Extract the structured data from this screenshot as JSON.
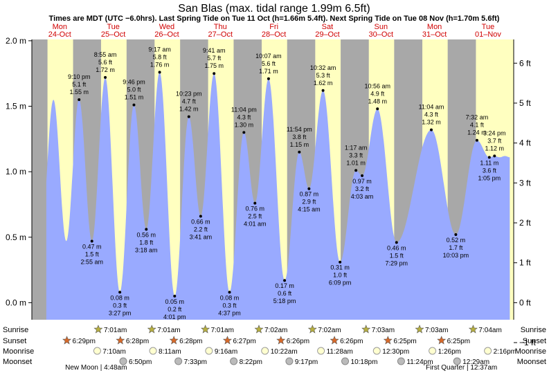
{
  "title": "San Blas (max. tidal range 1.99m 6.5ft)",
  "subtitle": "Times are MDT (UTC −6.0hrs). Last Spring Tide on Tue 11 Oct (h=1.66m 5.4ft). Next Spring Tide on Tue 08 Nov (h=1.70m 5.6ft)",
  "colors": {
    "day": "#ffffc0",
    "night": "#a8a8a8",
    "tide": "#99aaff",
    "day_label": "#d00000",
    "sun": "#b8b040",
    "sunset": "#d86a2a"
  },
  "chart_data": {
    "type": "area",
    "x_start": "2022-10-24 00:00",
    "x_end": "2022-11-01 24:00",
    "data_start": "2022-10-24 06:29",
    "data_end": "2022-11-01 22:15",
    "ylim": [
      -0.13,
      2.01
    ],
    "y_ticks_m": [
      "2.0 m",
      "1.5 m",
      "1.0 m",
      "0.5 m",
      "0.0 m"
    ],
    "y_ticks_ft": [
      "6 ft",
      "5 ft",
      "4 ft",
      "3 ft",
      "2 ft",
      "1 ft",
      "0 ft",
      "−1 ft"
    ],
    "days": [
      {
        "dow": "Mon",
        "date": "24-Oct",
        "sunrise": "7:01",
        "sunset": "18:29"
      },
      {
        "dow": "Tue",
        "date": "25–Oct",
        "sunrise": "7:01",
        "sunset": "18:28"
      },
      {
        "dow": "Wed",
        "date": "26–Oct",
        "sunrise": "7:01",
        "sunset": "18:28"
      },
      {
        "dow": "Thu",
        "date": "27–Oct",
        "sunrise": "7:01",
        "sunset": "18:27"
      },
      {
        "dow": "Fri",
        "date": "28–Oct",
        "sunrise": "7:02",
        "sunset": "18:26"
      },
      {
        "dow": "Sat",
        "date": "29–Oct",
        "sunrise": "7:02",
        "sunset": "18:26"
      },
      {
        "dow": "Sun",
        "date": "30–Oct",
        "sunrise": "7:03",
        "sunset": "18:25"
      },
      {
        "dow": "Mon",
        "date": "31–Oct",
        "sunrise": "7:03",
        "sunset": "18:25"
      },
      {
        "dow": "Tue",
        "date": "01–Nov",
        "sunrise": "7:04",
        "sunset": ""
      }
    ],
    "tides": [
      {
        "day": 0,
        "time": "21:10",
        "m": 1.55,
        "lines": [
          "9:10 pm",
          "5.1 ft",
          "1.55 m"
        ]
      },
      {
        "day": 1,
        "time": "02:55",
        "m": 0.47,
        "lines": [
          "0.47 m",
          "1.5 ft",
          "2:55 am"
        ]
      },
      {
        "day": 1,
        "time": "08:55",
        "m": 1.72,
        "lines": [
          "8:55 am",
          "5.6 ft",
          "1.72 m"
        ]
      },
      {
        "day": 1,
        "time": "15:27",
        "m": 0.08,
        "lines": [
          "0.08 m",
          "0.3 ft",
          "3:27 pm"
        ]
      },
      {
        "day": 1,
        "time": "21:46",
        "m": 1.51,
        "lines": [
          "9:46 pm",
          "5.0 ft",
          "1.51 m"
        ]
      },
      {
        "day": 2,
        "time": "03:18",
        "m": 0.56,
        "lines": [
          "0.56 m",
          "1.8 ft",
          "3:18 am"
        ]
      },
      {
        "day": 2,
        "time": "09:17",
        "m": 1.76,
        "lines": [
          "9:17 am",
          "5.8 ft",
          "1.76 m"
        ]
      },
      {
        "day": 2,
        "time": "16:01",
        "m": 0.05,
        "lines": [
          "0.05 m",
          "0.2 ft",
          "4:01 pm"
        ]
      },
      {
        "day": 2,
        "time": "22:23",
        "m": 1.42,
        "lines": [
          "10:23 pm",
          "4.7 ft",
          "1.42 m"
        ]
      },
      {
        "day": 3,
        "time": "03:41",
        "m": 0.66,
        "lines": [
          "0.66 m",
          "2.2 ft",
          "3:41 am"
        ]
      },
      {
        "day": 3,
        "time": "09:41",
        "m": 1.75,
        "lines": [
          "9:41 am",
          "5.7 ft",
          "1.75 m"
        ]
      },
      {
        "day": 3,
        "time": "16:37",
        "m": 0.08,
        "lines": [
          "0.08 m",
          "0.3 ft",
          "4:37 pm"
        ]
      },
      {
        "day": 3,
        "time": "23:04",
        "m": 1.3,
        "lines": [
          "11:04 pm",
          "4.3 ft",
          "1.30 m"
        ]
      },
      {
        "day": 4,
        "time": "04:01",
        "m": 0.76,
        "lines": [
          "0.76 m",
          "2.5 ft",
          "4:01 am"
        ]
      },
      {
        "day": 4,
        "time": "10:07",
        "m": 1.71,
        "lines": [
          "10:07 am",
          "5.6 ft",
          "1.71 m"
        ]
      },
      {
        "day": 4,
        "time": "17:18",
        "m": 0.17,
        "lines": [
          "0.17 m",
          "0.6 ft",
          "5:18 pm"
        ]
      },
      {
        "day": 4,
        "time": "23:54",
        "m": 1.15,
        "lines": [
          "11:54 pm",
          "3.8 ft",
          "1.15 m"
        ]
      },
      {
        "day": 5,
        "time": "04:15",
        "m": 0.87,
        "lines": [
          "0.87 m",
          "2.9 ft",
          "4:15 am"
        ]
      },
      {
        "day": 5,
        "time": "10:32",
        "m": 1.62,
        "lines": [
          "10:32 am",
          "5.3 ft",
          "1.62 m"
        ]
      },
      {
        "day": 5,
        "time": "18:09",
        "m": 0.31,
        "lines": [
          "0.31 m",
          "1.0 ft",
          "6:09 pm"
        ]
      },
      {
        "day": 6,
        "time": "01:17",
        "m": 1.01,
        "lines": [
          "1:17 am",
          "3.3 ft",
          "1.01 m"
        ]
      },
      {
        "day": 6,
        "time": "04:03",
        "m": 0.97,
        "lines": [
          "0.97 m",
          "3.2 ft",
          "4:03 am"
        ]
      },
      {
        "day": 6,
        "time": "10:56",
        "m": 1.48,
        "lines": [
          "10:56 am",
          "4.9 ft",
          "1.48 m"
        ]
      },
      {
        "day": 6,
        "time": "19:29",
        "m": 0.46,
        "lines": [
          "0.46 m",
          "1.5 ft",
          "7:29 pm"
        ]
      },
      {
        "day": 7,
        "time": "11:04",
        "m": 1.32,
        "lines": [
          "11:04 am",
          "4.3 ft",
          "1.32 m"
        ]
      },
      {
        "day": 7,
        "time": "22:03",
        "m": 0.52,
        "lines": [
          "0.52 m",
          "1.7 ft",
          "10:03 pm"
        ]
      },
      {
        "day": 8,
        "time": "07:32",
        "m": 1.24,
        "lines": [
          "7:32 am",
          "4.1 ft",
          "1.24 m"
        ]
      },
      {
        "day": 8,
        "time": "13:05",
        "m": 1.11,
        "lines": [
          "1.11 m",
          "3.6 ft",
          "1:05 pm"
        ]
      },
      {
        "day": 8,
        "time": "15:24",
        "m": 1.12,
        "lines": [
          "3:24 pm",
          "3.7 ft",
          "1.12 m"
        ]
      }
    ],
    "rows": {
      "sunrise_label": "Sunrise",
      "sunset_label": "Sunset",
      "moonrise_label": "Moonrise",
      "moonset_label": "Moonset",
      "sunrise": [
        {
          "day": 1,
          "time": "7:01",
          "text": "7:01am"
        },
        {
          "day": 2,
          "time": "7:01",
          "text": "7:01am"
        },
        {
          "day": 3,
          "time": "7:01",
          "text": "7:01am"
        },
        {
          "day": 4,
          "time": "7:02",
          "text": "7:02am"
        },
        {
          "day": 5,
          "time": "7:02",
          "text": "7:02am"
        },
        {
          "day": 6,
          "time": "7:03",
          "text": "7:03am"
        },
        {
          "day": 7,
          "time": "7:03",
          "text": "7:03am"
        },
        {
          "day": 8,
          "time": "7:04",
          "text": "7:04am"
        }
      ],
      "sunset": [
        {
          "day": 0,
          "time": "18:29",
          "text": "6:29pm"
        },
        {
          "day": 1,
          "time": "18:28",
          "text": "6:28pm"
        },
        {
          "day": 2,
          "time": "18:28",
          "text": "6:28pm"
        },
        {
          "day": 3,
          "time": "18:27",
          "text": "6:27pm"
        },
        {
          "day": 4,
          "time": "18:26",
          "text": "6:26pm"
        },
        {
          "day": 5,
          "time": "18:26",
          "text": "6:26pm"
        },
        {
          "day": 6,
          "time": "18:25",
          "text": "6:25pm"
        },
        {
          "day": 7,
          "time": "18:25",
          "text": "6:25pm"
        }
      ],
      "moonrise": [
        {
          "day": 1,
          "time": "7:10",
          "text": "7:10am"
        },
        {
          "day": 2,
          "time": "8:11",
          "text": "8:11am"
        },
        {
          "day": 3,
          "time": "9:16",
          "text": "9:16am"
        },
        {
          "day": 4,
          "time": "10:22",
          "text": "10:22am"
        },
        {
          "day": 5,
          "time": "11:28",
          "text": "11:28am"
        },
        {
          "day": 6,
          "time": "12:30",
          "text": "12:30pm"
        },
        {
          "day": 7,
          "time": "13:26",
          "text": "1:26pm"
        },
        {
          "day": 8,
          "time": "14:16",
          "text": "2:16pm"
        }
      ],
      "moonset": [
        {
          "day": 1,
          "time": "18:50",
          "text": "6:50pm"
        },
        {
          "day": 2,
          "time": "19:33",
          "text": "7:33pm"
        },
        {
          "day": 3,
          "time": "20:22",
          "text": "8:22pm"
        },
        {
          "day": 4,
          "time": "21:17",
          "text": "9:17pm"
        },
        {
          "day": 5,
          "time": "22:18",
          "text": "10:18pm"
        },
        {
          "day": 6,
          "time": "23:24",
          "text": "11:24pm"
        },
        {
          "day": 8,
          "time": "0:29",
          "text": "12:29am"
        }
      ]
    },
    "moon_phases": [
      {
        "day": 1,
        "time": "4:48",
        "text": "New Moon | 4:48am"
      },
      {
        "day": 8,
        "time": "0:37",
        "text": "First Quarter | 12:37am"
      }
    ]
  }
}
